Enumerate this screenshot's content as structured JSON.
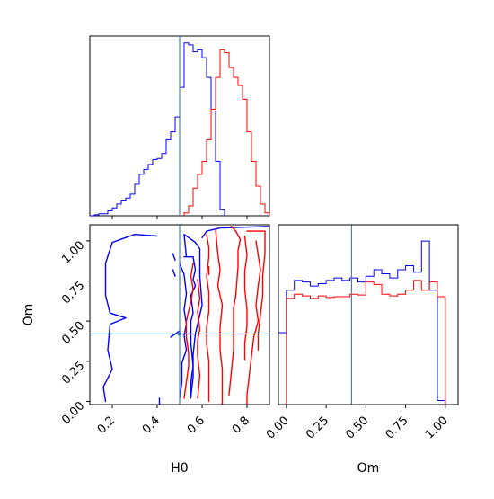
{
  "chart_data": [
    {
      "type": "histogram",
      "panel": "top-left",
      "xlim": [
        0.1,
        0.9
      ],
      "x_ticks": [
        0.2,
        0.4,
        0.6,
        0.8
      ],
      "y_ticks_visible": false,
      "truth_line_x": 0.5,
      "colors": {
        "blue": "#0000ff",
        "red": "#ff0000",
        "truth": "#4682b4"
      },
      "series": [
        {
          "color": "blue",
          "edges": [
            0.1,
            0.12,
            0.14,
            0.16,
            0.18,
            0.2,
            0.22,
            0.24,
            0.26,
            0.28,
            0.3,
            0.32,
            0.34,
            0.36,
            0.38,
            0.4,
            0.42,
            0.44,
            0.46,
            0.48,
            0.5,
            0.52,
            0.54,
            0.56,
            0.58,
            0.6,
            0.62,
            0.64,
            0.66,
            0.68,
            0.7
          ],
          "counts": [
            0,
            1,
            2,
            2,
            5,
            8,
            12,
            15,
            18,
            22,
            32,
            42,
            47,
            52,
            57,
            58,
            63,
            77,
            85,
            100,
            130,
            175,
            173,
            166,
            168,
            160,
            140,
            106,
            55,
            6
          ]
        },
        {
          "color": "red",
          "edges": [
            0.52,
            0.54,
            0.56,
            0.58,
            0.6,
            0.62,
            0.64,
            0.66,
            0.68,
            0.7,
            0.72,
            0.74,
            0.76,
            0.78,
            0.8,
            0.82,
            0.84,
            0.86,
            0.88,
            0.9
          ],
          "counts": [
            3,
            10,
            28,
            42,
            55,
            77,
            108,
            140,
            168,
            165,
            150,
            140,
            132,
            118,
            85,
            55,
            30,
            12,
            3
          ]
        }
      ]
    },
    {
      "type": "contour",
      "panel": "bottom-left",
      "xlabel": "H0",
      "ylabel": "Om",
      "xlim": [
        0.1,
        0.9
      ],
      "ylim": [
        -0.02,
        1.1
      ],
      "x_ticks": [
        "0.2",
        "0.4",
        "0.6",
        "0.8"
      ],
      "y_ticks": [
        "0.00",
        "0.25",
        "0.50",
        "0.75",
        "1.00"
      ],
      "truth_point": {
        "H0": 0.5,
        "Om": 0.42
      },
      "contours": [
        {
          "color": "blue",
          "path": [
            [
              0.4,
              1.03
            ],
            [
              0.3,
              1.04
            ],
            [
              0.2,
              0.99
            ],
            [
              0.17,
              0.86
            ],
            [
              0.17,
              0.66
            ],
            [
              0.19,
              0.55
            ],
            [
              0.26,
              0.52
            ],
            [
              0.19,
              0.48
            ],
            [
              0.18,
              0.32
            ],
            [
              0.2,
              0.2
            ],
            [
              0.16,
              0.09
            ],
            [
              0.17,
              0.0
            ]
          ]
        },
        {
          "color": "blue",
          "path": [
            [
              0.53,
              0.9
            ],
            [
              0.52,
              1.04
            ],
            [
              0.57,
              0.99
            ],
            [
              0.59,
              0.95
            ],
            [
              0.59,
              0.78
            ],
            [
              0.6,
              0.6
            ],
            [
              0.57,
              0.42
            ],
            [
              0.56,
              0.29
            ],
            [
              0.56,
              0.15
            ],
            [
              0.55,
              0.03
            ]
          ]
        },
        {
          "color": "blue",
          "path": [
            [
              0.47,
              0.92
            ],
            [
              0.48,
              0.88
            ]
          ]
        },
        {
          "color": "blue",
          "path": [
            [
              0.47,
              0.82
            ],
            [
              0.48,
              0.78
            ]
          ]
        },
        {
          "color": "blue",
          "path": [
            [
              0.41,
              0.02
            ],
            [
              0.41,
              -0.02
            ]
          ]
        },
        {
          "color": "blue",
          "path": [
            [
              0.46,
              0.4
            ],
            [
              0.5,
              0.44
            ]
          ]
        },
        {
          "color": "blue",
          "path": [
            [
              0.5,
              0.86
            ],
            [
              0.52,
              0.79
            ],
            [
              0.53,
              0.67
            ],
            [
              0.52,
              0.57
            ],
            [
              0.53,
              0.48
            ],
            [
              0.52,
              0.41
            ],
            [
              0.53,
              0.32
            ],
            [
              0.51,
              0.24
            ],
            [
              0.51,
              0.12
            ],
            [
              0.5,
              0.02
            ]
          ]
        },
        {
          "color": "blue",
          "path": [
            [
              0.52,
              0.9
            ],
            [
              0.56,
              0.9
            ],
            [
              0.57,
              0.82
            ],
            [
              0.56,
              0.76
            ],
            [
              0.57,
              0.72
            ],
            [
              0.55,
              0.66
            ],
            [
              0.56,
              0.55
            ],
            [
              0.55,
              0.5
            ],
            [
              0.55,
              0.36
            ],
            [
              0.56,
              0.22
            ],
            [
              0.55,
              0.12
            ],
            [
              0.55,
              0.02
            ]
          ]
        },
        {
          "color": "blue",
          "path": [
            [
              0.6,
              1.02
            ],
            [
              0.62,
              1.06
            ],
            [
              0.68,
              1.08
            ],
            [
              0.9,
              1.09
            ]
          ]
        },
        {
          "color": "red",
          "path": [
            [
              0.56,
              0.86
            ],
            [
              0.55,
              0.78
            ],
            [
              0.56,
              0.7
            ],
            [
              0.55,
              0.62
            ],
            [
              0.54,
              0.56
            ],
            [
              0.53,
              0.5
            ],
            [
              0.53,
              0.4
            ],
            [
              0.54,
              0.3
            ],
            [
              0.54,
              0.22
            ],
            [
              0.53,
              0.12
            ],
            [
              0.52,
              0.02
            ]
          ]
        },
        {
          "color": "red",
          "path": [
            [
              0.58,
              0.76
            ],
            [
              0.59,
              0.64
            ],
            [
              0.58,
              0.56
            ],
            [
              0.59,
              0.45
            ],
            [
              0.58,
              0.38
            ],
            [
              0.58,
              0.28
            ],
            [
              0.59,
              0.16
            ],
            [
              0.58,
              0.02
            ]
          ]
        },
        {
          "color": "red",
          "path": [
            [
              0.62,
              1.04
            ],
            [
              0.63,
              0.96
            ],
            [
              0.63,
              0.9
            ],
            [
              0.62,
              0.78
            ],
            [
              0.63,
              0.68
            ],
            [
              0.63,
              0.56
            ],
            [
              0.62,
              0.46
            ],
            [
              0.62,
              0.36
            ],
            [
              0.63,
              0.25
            ],
            [
              0.63,
              0.12
            ],
            [
              0.63,
              0.0
            ]
          ]
        },
        {
          "color": "red",
          "path": [
            [
              0.66,
              1.07
            ],
            [
              0.67,
              0.92
            ],
            [
              0.68,
              0.82
            ],
            [
              0.67,
              0.72
            ],
            [
              0.69,
              0.6
            ],
            [
              0.68,
              0.46
            ],
            [
              0.68,
              0.32
            ],
            [
              0.69,
              0.2
            ],
            [
              0.69,
              0.1
            ],
            [
              0.69,
              -0.02
            ]
          ]
        },
        {
          "color": "red",
          "path": [
            [
              0.73,
              1.09
            ],
            [
              0.75,
              1.06
            ],
            [
              0.77,
              1.01
            ],
            [
              0.76,
              0.94
            ],
            [
              0.76,
              0.84
            ],
            [
              0.75,
              0.66
            ],
            [
              0.74,
              0.58
            ],
            [
              0.74,
              0.46
            ],
            [
              0.74,
              0.32
            ],
            [
              0.73,
              0.18
            ],
            [
              0.72,
              0.04
            ]
          ]
        },
        {
          "color": "red",
          "path": [
            [
              0.79,
              1.03
            ],
            [
              0.8,
              0.91
            ],
            [
              0.79,
              0.81
            ],
            [
              0.79,
              0.7
            ],
            [
              0.8,
              0.57
            ],
            [
              0.8,
              0.47
            ],
            [
              0.79,
              0.36
            ],
            [
              0.79,
              0.26
            ]
          ]
        },
        {
          "color": "red",
          "path": [
            [
              0.84,
              1.0
            ],
            [
              0.86,
              0.82
            ],
            [
              0.85,
              0.72
            ],
            [
              0.84,
              0.6
            ],
            [
              0.85,
              0.5
            ],
            [
              0.83,
              0.4
            ],
            [
              0.82,
              0.28
            ],
            [
              0.81,
              0.16
            ],
            [
              0.8,
              0.04
            ],
            [
              0.8,
              -0.02
            ]
          ]
        },
        {
          "color": "red",
          "path": [
            [
              0.88,
              1.06
            ],
            [
              0.88,
              0.92
            ],
            [
              0.87,
              0.78
            ],
            [
              0.87,
              0.66
            ],
            [
              0.86,
              0.54
            ],
            [
              0.85,
              0.42
            ],
            [
              0.85,
              0.32
            ]
          ]
        },
        {
          "color": "red",
          "path": [
            [
              0.8,
              1.06
            ],
            [
              0.88,
              1.06
            ]
          ]
        },
        {
          "color": "red",
          "path": [
            [
              0.63,
              0.84
            ],
            [
              0.63,
              0.79
            ]
          ]
        }
      ]
    },
    {
      "type": "histogram",
      "panel": "bottom-right",
      "xlabel": "Om",
      "xlim": [
        -0.05,
        1.08
      ],
      "x_ticks": [
        "0.00",
        "0.25",
        "0.50",
        "0.75",
        "1.00"
      ],
      "truth_line_x": 0.41,
      "series": [
        {
          "color": "blue",
          "edges": [
            -0.05,
            0.0,
            0.05,
            0.1,
            0.15,
            0.2,
            0.25,
            0.3,
            0.35,
            0.4,
            0.45,
            0.5,
            0.55,
            0.6,
            0.65,
            0.7,
            0.75,
            0.8,
            0.85,
            0.9,
            0.95,
            1.0,
            1.05
          ],
          "counts": [
            88,
            140,
            152,
            150,
            145,
            148,
            152,
            155,
            152,
            155,
            150,
            157,
            165,
            160,
            155,
            165,
            170,
            162,
            200,
            140,
            5,
            0
          ]
        },
        {
          "color": "red",
          "edges": [
            0.0,
            0.05,
            0.1,
            0.15,
            0.2,
            0.25,
            0.3,
            0.35,
            0.4,
            0.45,
            0.5,
            0.55,
            0.6,
            0.65,
            0.7,
            0.75,
            0.8,
            0.85,
            0.9,
            0.95,
            1.0
          ],
          "counts": [
            130,
            135,
            133,
            130,
            133,
            131,
            132,
            132,
            135,
            134,
            150,
            147,
            135,
            133,
            135,
            140,
            152,
            140,
            150,
            132
          ]
        }
      ]
    }
  ]
}
